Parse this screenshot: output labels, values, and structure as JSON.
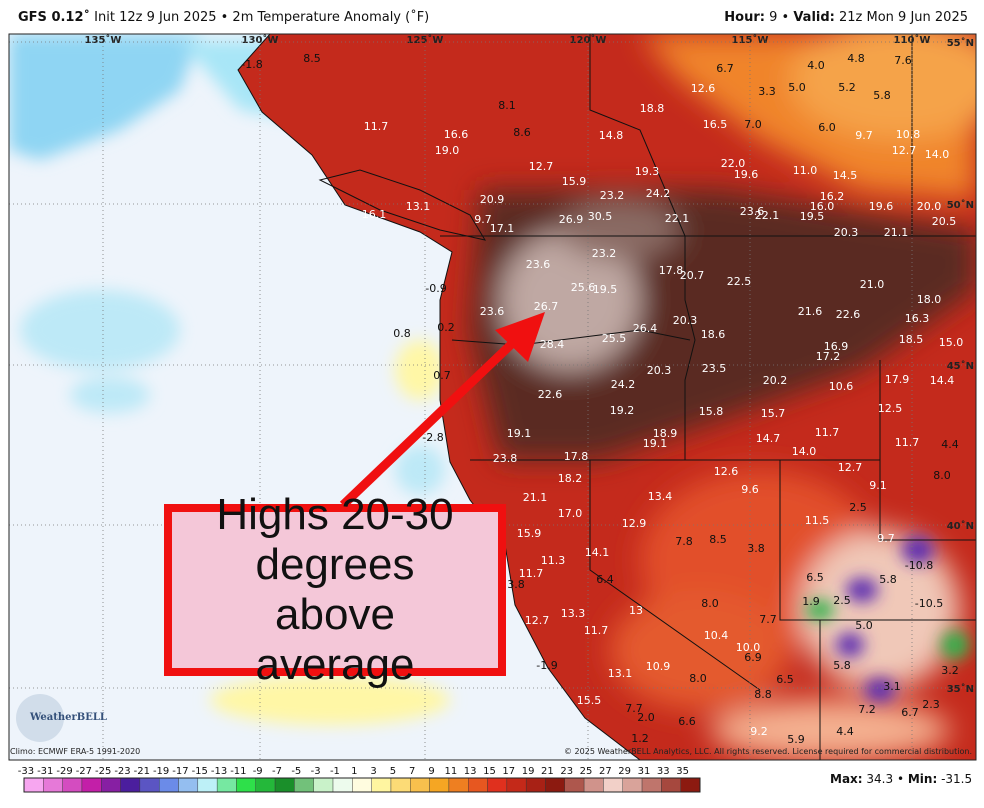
{
  "header": {
    "model": "GFS 0.12˚",
    "subtitle": "Init 12z 9 Jun 2025 • 2m Temperature Anomaly (˚F)",
    "hour_label": "Hour:",
    "hour": "9",
    "valid_label": "Valid:",
    "valid": "21z Mon 9 Jun 2025"
  },
  "map": {
    "lon_labels": [
      "135˚W",
      "130˚W",
      "125˚W",
      "120˚W",
      "115˚W",
      "110˚W"
    ],
    "lat_labels": [
      "55˚N",
      "50˚N",
      "45˚N",
      "40˚N",
      "35˚N"
    ],
    "values": [
      "-1.8",
      "8.5",
      "8.1",
      "8.6",
      "11.7",
      "16.6",
      "19.0",
      "18.8",
      "12.6",
      "6.7",
      "3.3",
      "5.0",
      "4.0",
      "4.8",
      "7.6",
      "5.2",
      "5.8",
      "16.5",
      "7.0",
      "6.0",
      "9.7",
      "10.8",
      "12.7",
      "14.0",
      "14.8",
      "12.7",
      "15.9",
      "19.3",
      "22.0",
      "19.6",
      "11.0",
      "14.5",
      "16.2",
      "16.0",
      "19.5",
      "19.6",
      "20.0",
      "20.5",
      "20.9",
      "23.2",
      "24.2",
      "26.9",
      "30.5",
      "22.1",
      "23.6",
      "22.1",
      "20.3",
      "21.1",
      "9.7",
      "17.1",
      "16.1",
      "13.1",
      "23.2",
      "23.6",
      "17.8",
      "20.7",
      "22.5",
      "25.6",
      "19.5",
      "21.0",
      "18.0",
      "23.6",
      "26.7",
      "26.4",
      "20.3",
      "18.6",
      "21.6",
      "22.6",
      "16.3",
      "0.8",
      "0.2",
      "-0.9",
      "28.4",
      "25.5",
      "16.9",
      "17.2",
      "18.5",
      "15.0",
      "0.7",
      "20.3",
      "23.5",
      "20.2",
      "10.6",
      "17.9",
      "14.4",
      "24.2",
      "22.6",
      "19.2",
      "15.8",
      "15.7",
      "12.5",
      "18.9",
      "19.1",
      "19.1",
      "14.7",
      "11.7",
      "11.7",
      "4.4",
      "-2.8",
      "14.0",
      "23.8",
      "17.8",
      "12.6",
      "12.7",
      "8.0",
      "18.2",
      "9.1",
      "9.6",
      "13.4",
      "21.1",
      "2.5",
      "11.5",
      "17.0",
      "12.9",
      "15.9",
      "7.8",
      "8.5",
      "3.8",
      "9.7",
      "14.1",
      "11.3",
      "-10.8",
      "11.7",
      "6.4",
      "6.5",
      "5.8",
      "3.8",
      "1.9",
      "2.5",
      "-10.5",
      "8.0",
      "13.3",
      "13",
      "7.7",
      "5.0",
      "12.7",
      "11.7",
      "10.4",
      "10.0",
      "6.9",
      "5.8",
      "3.2",
      "-1.9",
      "13.1",
      "10.9",
      "8.0",
      "6.5",
      "3.1",
      "7.2",
      "6.7",
      "2.3",
      "8.8",
      "15.5",
      "7.7",
      "2.0",
      "6.6",
      "9.2",
      "4.4",
      "5.9",
      "1.2"
    ],
    "logo": "WeatherBELL"
  },
  "callout": "Highs 20-30 degrees above average",
  "footer": {
    "climo": "Climo: ECMWF ERA-5 1991-2020",
    "copyright": "© 2025 WeatherBELL Analytics, LLC. All rights reserved. License required for commercial distribution.",
    "legend_ticks": [
      -33,
      -31,
      -29,
      -27,
      -25,
      -23,
      -21,
      -19,
      -17,
      -15,
      -13,
      -11,
      -9,
      -7,
      -5,
      -3,
      -1,
      1,
      3,
      5,
      7,
      9,
      11,
      13,
      15,
      17,
      19,
      21,
      23,
      25,
      27,
      29,
      31,
      33,
      35
    ],
    "max_label": "Max:",
    "max": "34.3",
    "min_label": "Min:",
    "min": "-31.5"
  }
}
